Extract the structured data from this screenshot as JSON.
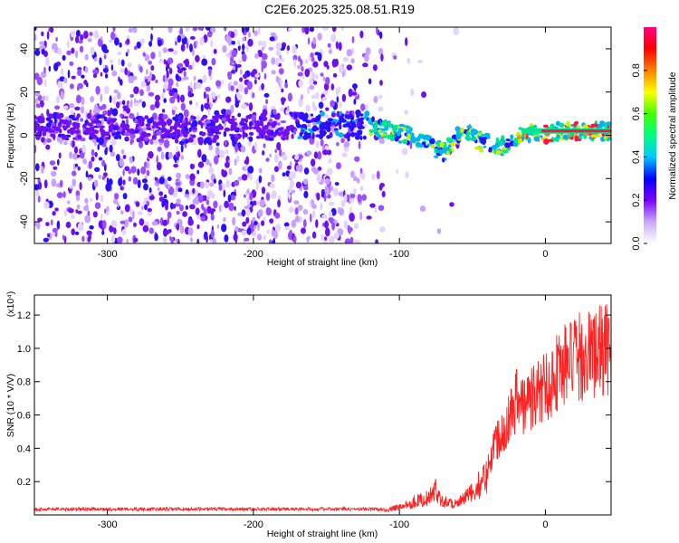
{
  "title": "C2E6.2025.325.08.51.R19",
  "chart_data": [
    {
      "type": "heatmap",
      "name": "spectrogram",
      "xlabel": "Height of straight line (km)",
      "ylabel": "Frequency (Hz)",
      "xlim": [
        -350,
        45
      ],
      "ylim": [
        -50,
        50
      ],
      "xticks": [
        -300,
        -200,
        -100,
        0
      ],
      "yticks": [
        -40,
        -20,
        0,
        20,
        40
      ],
      "xtick_labels": [
        "-300",
        "-200",
        "-100",
        "0"
      ],
      "ytick_labels": [
        "-40",
        "-20",
        "0",
        "20",
        "40"
      ],
      "colorbar": {
        "label": "Normalized spectral amplitude",
        "range": [
          0,
          1
        ],
        "ticks": [
          0.0,
          0.2,
          0.4,
          0.6,
          0.8
        ],
        "tick_labels": [
          "0.0",
          "0.2",
          "0.4",
          "0.6",
          "0.8"
        ],
        "colors": [
          "#ffffff",
          "#c8a8ff",
          "#7a00ff",
          "#0000ff",
          "#00c8ff",
          "#00ff80",
          "#40ff00",
          "#ffff00",
          "#ff8000",
          "#ff0000",
          "#ff0080"
        ]
      },
      "ridge": {
        "description_points_x": [
          -350,
          -250,
          -200,
          -160,
          -130,
          -110,
          -95,
          -80,
          -70,
          -55,
          -45,
          -30,
          -20,
          -10,
          0,
          10,
          20,
          45
        ],
        "description_points_y": [
          4,
          3,
          3,
          5,
          5,
          3,
          0,
          -4,
          -8,
          3,
          -3,
          -5,
          -1,
          1,
          1,
          2,
          2,
          2
        ]
      }
    },
    {
      "type": "line",
      "name": "snr",
      "xlabel": "Height of straight line (km)",
      "ylabel": "SNR (10 * V/V)",
      "exponent_label": "(x10⁴)",
      "xlim": [
        -350,
        45
      ],
      "ylim": [
        0,
        1.32
      ],
      "xticks": [
        -300,
        -200,
        -100,
        0
      ],
      "yticks": [
        0.2,
        0.4,
        0.6,
        0.8,
        1.0,
        1.2
      ],
      "xtick_labels": [
        "-300",
        "-200",
        "-100",
        "0"
      ],
      "ytick_labels": [
        "0.2",
        "0.4",
        "0.6",
        "0.8",
        "1.0",
        "1.2"
      ],
      "color": "#ff2020",
      "envelope": {
        "x": [
          -350,
          -250,
          -150,
          -110,
          -100,
          -90,
          -80,
          -75,
          -70,
          -60,
          -50,
          -40,
          -35,
          -30,
          -25,
          -20,
          -15,
          -10,
          -5,
          0,
          5,
          10,
          20,
          30,
          45
        ],
        "y": [
          0.03,
          0.03,
          0.035,
          0.04,
          0.07,
          0.12,
          0.15,
          0.22,
          0.12,
          0.1,
          0.2,
          0.35,
          0.55,
          0.65,
          0.75,
          0.9,
          0.85,
          0.9,
          0.95,
          1.0,
          1.05,
          1.15,
          1.2,
          1.25,
          1.28
        ]
      }
    }
  ]
}
